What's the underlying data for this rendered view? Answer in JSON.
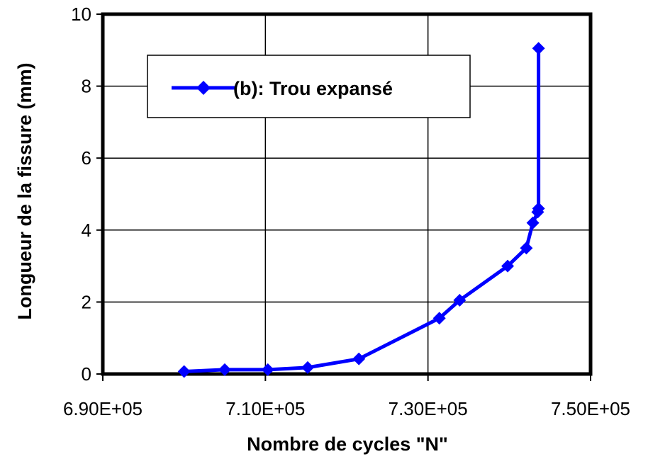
{
  "chart_data": {
    "type": "line",
    "xlabel": "Nombre de cycles \"N\"",
    "ylabel": "Longueur de la fissure (mm)",
    "xlim": [
      690000,
      750000
    ],
    "ylim": [
      0,
      10
    ],
    "x_ticks": [
      690000,
      710000,
      730000,
      750000
    ],
    "x_tick_labels": [
      "6.90E+05",
      "7.10E+05",
      "7.30E+05",
      "7.50E+05"
    ],
    "y_ticks": [
      0,
      2,
      4,
      6,
      8,
      10
    ],
    "y_tick_labels": [
      "0",
      "2",
      "4",
      "6",
      "8",
      "10"
    ],
    "grid": true,
    "legend_position": "top-left",
    "series": [
      {
        "name": "(b): Trou expansé",
        "color": "#0000ff",
        "marker": "diamond",
        "x": [
          700000,
          705000,
          710300,
          715200,
          721500,
          731400,
          733900,
          739800,
          742100,
          742900,
          743500,
          743600,
          743600
        ],
        "y": [
          0.07,
          0.12,
          0.12,
          0.18,
          0.42,
          1.55,
          2.05,
          3.0,
          3.5,
          4.2,
          4.5,
          4.6,
          9.05
        ]
      }
    ]
  }
}
